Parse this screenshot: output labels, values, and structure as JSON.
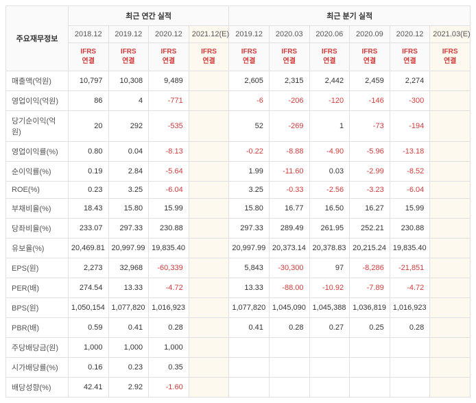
{
  "header": {
    "metric_label": "주요재무정보",
    "section_annual": "최근 연간 실적",
    "section_quarter": "최근 분기 실적",
    "ifrs_line1": "IFRS",
    "ifrs_line2": "연결",
    "annual_periods": [
      "2018.12",
      "2019.12",
      "2020.12",
      "2021.12(E)"
    ],
    "quarter_periods": [
      "2019.12",
      "2020.03",
      "2020.06",
      "2020.09",
      "2020.12",
      "2021.03(E)"
    ],
    "annual_est_cols": [
      false,
      false,
      false,
      true
    ],
    "quarter_est_cols": [
      false,
      false,
      false,
      false,
      false,
      true
    ]
  },
  "metrics": [
    {
      "label": "매출액(억원)",
      "a": [
        "10,797",
        "10,308",
        "9,489",
        ""
      ],
      "q": [
        "2,605",
        "2,315",
        "2,442",
        "2,459",
        "2,274",
        ""
      ]
    },
    {
      "label": "영업이익(억원)",
      "a": [
        "86",
        "4",
        "-771",
        ""
      ],
      "q": [
        "-6",
        "-206",
        "-120",
        "-146",
        "-300",
        ""
      ]
    },
    {
      "label": "당기순이익(억원)",
      "a": [
        "20",
        "292",
        "-535",
        ""
      ],
      "q": [
        "52",
        "-269",
        "1",
        "-73",
        "-194",
        ""
      ]
    },
    {
      "label": "영업이익률(%)",
      "a": [
        "0.80",
        "0.04",
        "-8.13",
        ""
      ],
      "q": [
        "-0.22",
        "-8.88",
        "-4.90",
        "-5.96",
        "-13.18",
        ""
      ]
    },
    {
      "label": "순이익률(%)",
      "a": [
        "0.19",
        "2.84",
        "-5.64",
        ""
      ],
      "q": [
        "1.99",
        "-11.60",
        "0.03",
        "-2.99",
        "-8.52",
        ""
      ]
    },
    {
      "label": "ROE(%)",
      "a": [
        "0.23",
        "3.25",
        "-6.04",
        ""
      ],
      "q": [
        "3.25",
        "-0.33",
        "-2.56",
        "-3.23",
        "-6.04",
        ""
      ]
    },
    {
      "label": "부채비율(%)",
      "a": [
        "18.43",
        "15.80",
        "15.99",
        ""
      ],
      "q": [
        "15.80",
        "16.77",
        "16.50",
        "16.27",
        "15.99",
        ""
      ]
    },
    {
      "label": "당좌비율(%)",
      "a": [
        "233.07",
        "297.33",
        "230.88",
        ""
      ],
      "q": [
        "297.33",
        "289.49",
        "261.95",
        "252.21",
        "230.88",
        ""
      ]
    },
    {
      "label": "유보율(%)",
      "a": [
        "20,469.81",
        "20,997.99",
        "19,835.40",
        ""
      ],
      "q": [
        "20,997.99",
        "20,373.14",
        "20,378.83",
        "20,215.24",
        "19,835.40",
        ""
      ]
    },
    {
      "label": "EPS(원)",
      "a": [
        "2,273",
        "32,968",
        "-60,339",
        ""
      ],
      "q": [
        "5,843",
        "-30,300",
        "97",
        "-8,286",
        "-21,851",
        ""
      ]
    },
    {
      "label": "PER(배)",
      "a": [
        "274.54",
        "13.33",
        "-4.72",
        ""
      ],
      "q": [
        "13.33",
        "-88.00",
        "-10.92",
        "-7.89",
        "-4.72",
        ""
      ]
    },
    {
      "label": "BPS(원)",
      "a": [
        "1,050,154",
        "1,077,820",
        "1,016,923",
        ""
      ],
      "q": [
        "1,077,820",
        "1,045,090",
        "1,045,388",
        "1,036,819",
        "1,016,923",
        ""
      ]
    },
    {
      "label": "PBR(배)",
      "a": [
        "0.59",
        "0.41",
        "0.28",
        ""
      ],
      "q": [
        "0.41",
        "0.28",
        "0.27",
        "0.25",
        "0.28",
        ""
      ]
    },
    {
      "label": "주당배당금(원)",
      "a": [
        "1,000",
        "1,000",
        "1,000",
        ""
      ],
      "q": [
        "",
        "",
        "",
        "",
        "",
        ""
      ]
    },
    {
      "label": "시가배당률(%)",
      "a": [
        "0.16",
        "0.23",
        "0.35",
        ""
      ],
      "q": [
        "",
        "",
        "",
        "",
        "",
        ""
      ]
    },
    {
      "label": "배당성향(%)",
      "a": [
        "42.41",
        "2.92",
        "-1.60",
        ""
      ],
      "q": [
        "",
        "",
        "",
        "",
        "",
        ""
      ]
    }
  ],
  "style": {
    "neg_color": "#d23b3b",
    "est_bg": "#fef9ee",
    "border_color": "#e0e0e0",
    "header_bg": "#fafafa"
  }
}
